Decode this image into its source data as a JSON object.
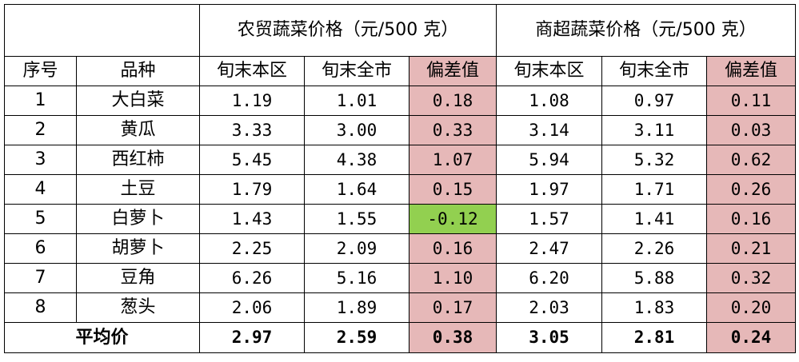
{
  "table": {
    "group_headers": {
      "farm": "农贸蔬菜价格（元/500 克）",
      "super": "商超蔬菜价格（元/500 克）"
    },
    "columns": {
      "index": "序号",
      "name": "品种",
      "farm_local": "旬末本区",
      "farm_city": "旬末全市",
      "farm_dev": "偏差值",
      "super_local": "旬末本区",
      "super_city": "旬末全市",
      "super_dev": "偏差值"
    },
    "rows": [
      {
        "index": "1",
        "name": "大白菜",
        "farm_local": "1.19",
        "farm_city": "1.01",
        "farm_dev": "0.18",
        "super_local": "1.08",
        "super_city": "0.97",
        "super_dev": "0.11"
      },
      {
        "index": "2",
        "name": "黄瓜",
        "farm_local": "3.33",
        "farm_city": "3.00",
        "farm_dev": "0.33",
        "super_local": "3.14",
        "super_city": "3.11",
        "super_dev": "0.03"
      },
      {
        "index": "3",
        "name": "西红柿",
        "farm_local": "5.45",
        "farm_city": "4.38",
        "farm_dev": "1.07",
        "super_local": "5.94",
        "super_city": "5.32",
        "super_dev": "0.62"
      },
      {
        "index": "4",
        "name": "土豆",
        "farm_local": "1.79",
        "farm_city": "1.64",
        "farm_dev": "0.15",
        "super_local": "1.97",
        "super_city": "1.71",
        "super_dev": "0.26"
      },
      {
        "index": "5",
        "name": "白萝卜",
        "farm_local": "1.43",
        "farm_city": "1.55",
        "farm_dev": "-0.12",
        "super_local": "1.57",
        "super_city": "1.41",
        "super_dev": "0.16"
      },
      {
        "index": "6",
        "name": "胡萝卜",
        "farm_local": "2.25",
        "farm_city": "2.09",
        "farm_dev": "0.16",
        "super_local": "2.47",
        "super_city": "2.26",
        "super_dev": "0.21"
      },
      {
        "index": "7",
        "name": "豆角",
        "farm_local": "6.26",
        "farm_city": "5.16",
        "farm_dev": "1.10",
        "super_local": "6.20",
        "super_city": "5.88",
        "super_dev": "0.32"
      },
      {
        "index": "8",
        "name": "葱头",
        "farm_local": "2.06",
        "farm_city": "1.89",
        "farm_dev": "0.17",
        "super_local": "2.03",
        "super_city": "1.83",
        "super_dev": "0.20"
      }
    ],
    "average": {
      "label": "平均价",
      "farm_local": "2.97",
      "farm_city": "2.59",
      "farm_dev": "0.38",
      "super_local": "3.05",
      "super_city": "2.81",
      "super_dev": "0.24"
    },
    "colors": {
      "positive_deviation": "#e6b8b8",
      "negative_deviation": "#92d050",
      "border": "#000000"
    }
  }
}
